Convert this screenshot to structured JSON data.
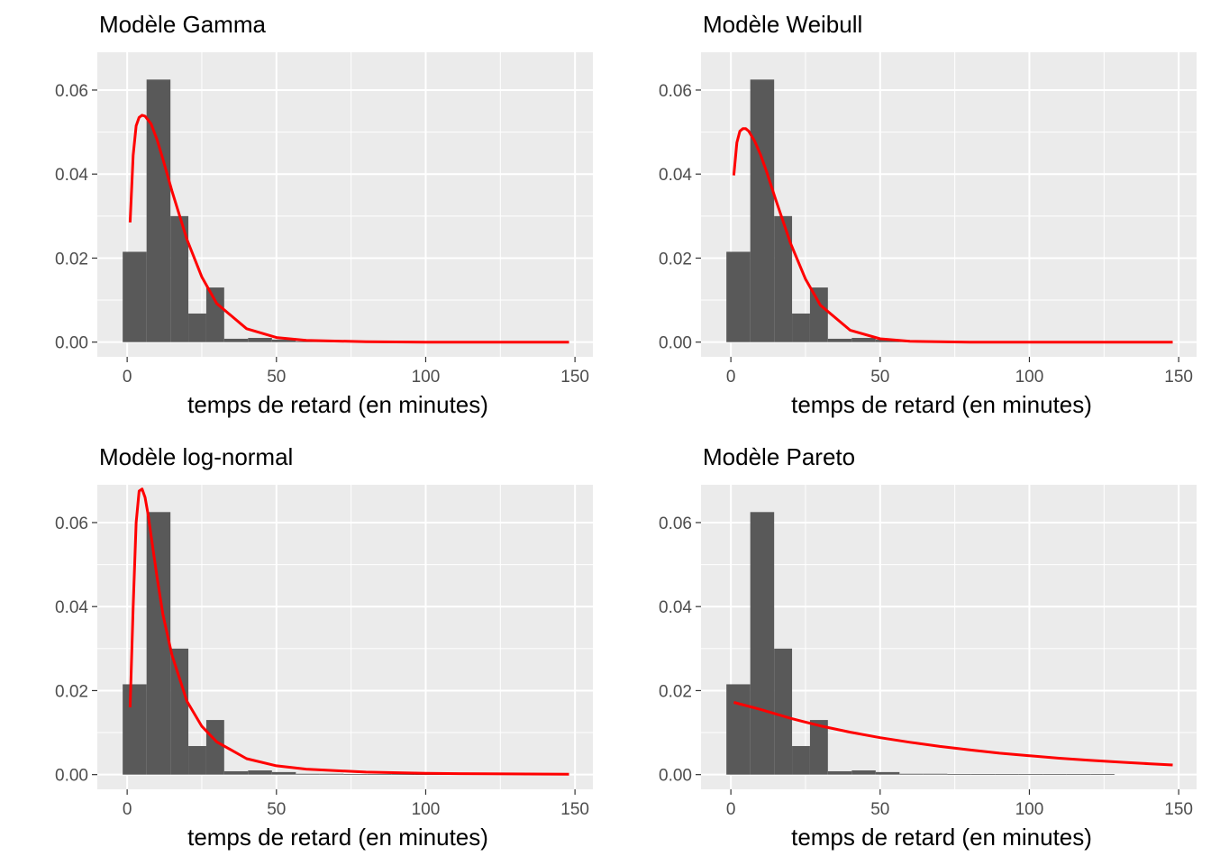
{
  "chart_data": [
    {
      "type": "histogram+line",
      "title": "Modèle Gamma",
      "xlabel": "temps de retard (en minutes)",
      "ylabel": "",
      "xlim": [
        -10,
        156
      ],
      "ylim": [
        -0.0035,
        0.069
      ],
      "x_ticks": [
        0,
        50,
        100,
        150
      ],
      "x_tick_labels": [
        "0",
        "50",
        "100",
        "150"
      ],
      "y_ticks": [
        0,
        0.02,
        0.04,
        0.06
      ],
      "y_tick_labels": [
        "0.00",
        "0.02",
        "0.04",
        "0.06"
      ],
      "grid": true,
      "histogram": {
        "bin_edges": [
          -1.5,
          6.5,
          14.5,
          20.5,
          26.5,
          32.5,
          40.5,
          48.5,
          56.5,
          64.5,
          72.5,
          80.5,
          88.5,
          96.5,
          104.5,
          112.5,
          120.5,
          128.5,
          136.5,
          144.5,
          152.5
        ],
        "density": [
          0.0215,
          0.0625,
          0.03,
          0.0068,
          0.013,
          0.0008,
          0.001,
          0.0006,
          0.0002,
          0.0002,
          0.0001,
          0.0001,
          0.0001,
          0.0001,
          0.0001,
          0.0001,
          0.0001,
          0.0,
          0.0,
          0.0
        ]
      },
      "fitted_curve": {
        "x": [
          1,
          2,
          3,
          4,
          5,
          6,
          8,
          10,
          12,
          15,
          20,
          25,
          30,
          40,
          50,
          60,
          80,
          100,
          120,
          148
        ],
        "y": [
          0.0285,
          0.0445,
          0.0515,
          0.0535,
          0.054,
          0.0538,
          0.052,
          0.0482,
          0.0435,
          0.036,
          0.0245,
          0.0155,
          0.0092,
          0.0032,
          0.0011,
          0.0004,
          0.0001,
          0.0,
          0.0,
          0.0
        ],
        "color": "#ff0000"
      }
    },
    {
      "type": "histogram+line",
      "title": "Modèle Weibull",
      "xlabel": "temps de retard (en minutes)",
      "ylabel": "",
      "xlim": [
        -10,
        156
      ],
      "ylim": [
        -0.0035,
        0.069
      ],
      "x_ticks": [
        0,
        50,
        100,
        150
      ],
      "x_tick_labels": [
        "0",
        "50",
        "100",
        "150"
      ],
      "y_ticks": [
        0,
        0.02,
        0.04,
        0.06
      ],
      "y_tick_labels": [
        "0.00",
        "0.02",
        "0.04",
        "0.06"
      ],
      "grid": true,
      "histogram": {
        "bin_edges": [
          -1.5,
          6.5,
          14.5,
          20.5,
          26.5,
          32.5,
          40.5,
          48.5,
          56.5,
          64.5,
          72.5,
          80.5,
          88.5,
          96.5,
          104.5,
          112.5,
          120.5,
          128.5,
          136.5,
          144.5,
          152.5
        ],
        "density": [
          0.0215,
          0.0625,
          0.03,
          0.0068,
          0.013,
          0.0008,
          0.001,
          0.0006,
          0.0002,
          0.0002,
          0.0001,
          0.0001,
          0.0001,
          0.0001,
          0.0001,
          0.0001,
          0.0001,
          0.0,
          0.0,
          0.0
        ]
      },
      "fitted_curve": {
        "x": [
          1,
          2,
          3,
          4,
          5,
          6,
          8,
          10,
          12,
          15,
          20,
          25,
          30,
          40,
          50,
          60,
          80,
          100,
          120,
          148
        ],
        "y": [
          0.0397,
          0.0475,
          0.0502,
          0.0508,
          0.0508,
          0.0502,
          0.0478,
          0.0445,
          0.0405,
          0.034,
          0.0235,
          0.015,
          0.0088,
          0.0028,
          0.0008,
          0.0002,
          0.0,
          0.0,
          0.0,
          0.0
        ],
        "color": "#ff0000"
      }
    },
    {
      "type": "histogram+line",
      "title": "Modèle log-normal",
      "xlabel": "temps de retard (en minutes)",
      "ylabel": "",
      "xlim": [
        -10,
        156
      ],
      "ylim": [
        -0.0035,
        0.069
      ],
      "x_ticks": [
        0,
        50,
        100,
        150
      ],
      "x_tick_labels": [
        "0",
        "50",
        "100",
        "150"
      ],
      "y_ticks": [
        0,
        0.02,
        0.04,
        0.06
      ],
      "y_tick_labels": [
        "0.00",
        "0.02",
        "0.04",
        "0.06"
      ],
      "grid": true,
      "histogram": {
        "bin_edges": [
          -1.5,
          6.5,
          14.5,
          20.5,
          26.5,
          32.5,
          40.5,
          48.5,
          56.5,
          64.5,
          72.5,
          80.5,
          88.5,
          96.5,
          104.5,
          112.5,
          120.5,
          128.5,
          136.5,
          144.5,
          152.5
        ],
        "density": [
          0.0215,
          0.0625,
          0.03,
          0.0068,
          0.013,
          0.0008,
          0.001,
          0.0006,
          0.0002,
          0.0002,
          0.0001,
          0.0001,
          0.0001,
          0.0001,
          0.0001,
          0.0001,
          0.0001,
          0.0,
          0.0,
          0.0
        ]
      },
      "fitted_curve": {
        "x": [
          1,
          2,
          3,
          4,
          5,
          6,
          7,
          8,
          10,
          12,
          15,
          20,
          25,
          30,
          40,
          50,
          60,
          80,
          100,
          120,
          148
        ],
        "y": [
          0.016,
          0.04,
          0.06,
          0.0675,
          0.068,
          0.066,
          0.062,
          0.057,
          0.047,
          0.038,
          0.0285,
          0.0175,
          0.0115,
          0.0078,
          0.0038,
          0.0021,
          0.0013,
          0.0006,
          0.0003,
          0.0002,
          0.0001
        ],
        "color": "#ff0000"
      }
    },
    {
      "type": "histogram+line",
      "title": "Modèle Pareto",
      "xlabel": "temps de retard (en minutes)",
      "ylabel": "",
      "xlim": [
        -10,
        156
      ],
      "ylim": [
        -0.0035,
        0.069
      ],
      "x_ticks": [
        0,
        50,
        100,
        150
      ],
      "x_tick_labels": [
        "0",
        "50",
        "100",
        "150"
      ],
      "y_ticks": [
        0,
        0.02,
        0.04,
        0.06
      ],
      "y_tick_labels": [
        "0.00",
        "0.02",
        "0.04",
        "0.06"
      ],
      "grid": true,
      "histogram": {
        "bin_edges": [
          -1.5,
          6.5,
          14.5,
          20.5,
          26.5,
          32.5,
          40.5,
          48.5,
          56.5,
          64.5,
          72.5,
          80.5,
          88.5,
          96.5,
          104.5,
          112.5,
          120.5,
          128.5,
          136.5,
          144.5,
          152.5
        ],
        "density": [
          0.0215,
          0.0625,
          0.03,
          0.0068,
          0.013,
          0.0008,
          0.001,
          0.0006,
          0.0002,
          0.0002,
          0.0001,
          0.0001,
          0.0001,
          0.0001,
          0.0001,
          0.0001,
          0.0001,
          0.0,
          0.0,
          0.0
        ]
      },
      "fitted_curve": {
        "x": [
          1,
          10,
          20,
          30,
          40,
          50,
          60,
          70,
          80,
          90,
          100,
          110,
          120,
          130,
          140,
          148
        ],
        "y": [
          0.0172,
          0.0155,
          0.0134,
          0.0116,
          0.0101,
          0.0088,
          0.0077,
          0.0067,
          0.0059,
          0.0051,
          0.0045,
          0.0039,
          0.0034,
          0.003,
          0.0026,
          0.0023
        ],
        "color": "#ff0000"
      }
    }
  ]
}
